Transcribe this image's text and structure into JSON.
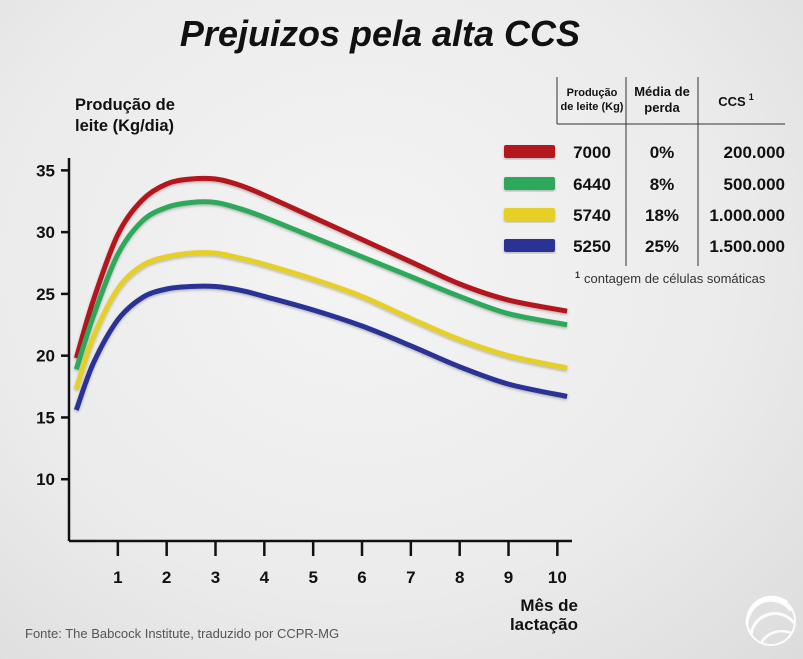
{
  "chart_data": {
    "type": "line",
    "title": "Prejuizos pela alta CCS",
    "ylabel_lines": [
      "Produção de",
      "leite (Kg/dia)"
    ],
    "xlabel_lines": [
      "Mês de",
      "lactação"
    ],
    "y_ticks": [
      10,
      15,
      20,
      25,
      30,
      35
    ],
    "x_ticks": [
      1,
      2,
      3,
      4,
      5,
      6,
      7,
      8,
      9,
      10
    ],
    "ylim": [
      5,
      36
    ],
    "xlim": [
      0,
      10.3
    ],
    "grid": false,
    "series": [
      {
        "name": "7000",
        "color": "#b3141c",
        "x": [
          0.15,
          0.5,
          1,
          1.5,
          2,
          2.5,
          3,
          3.5,
          4,
          5,
          6,
          7,
          8,
          9,
          10.2
        ],
        "y": [
          19.8,
          24.5,
          29.8,
          32.6,
          33.9,
          34.3,
          34.3,
          33.8,
          33.0,
          31.2,
          29.4,
          27.6,
          25.8,
          24.5,
          23.6
        ]
      },
      {
        "name": "6440",
        "color": "#2ea85a",
        "x": [
          0.15,
          0.5,
          1,
          1.5,
          2,
          2.5,
          3,
          3.5,
          4,
          5,
          6,
          7,
          8,
          9,
          10.2
        ],
        "y": [
          18.9,
          23.2,
          28.2,
          30.9,
          32.0,
          32.4,
          32.4,
          31.9,
          31.2,
          29.6,
          28.0,
          26.4,
          24.8,
          23.4,
          22.5
        ]
      },
      {
        "name": "5740",
        "color": "#e6cf28",
        "x": [
          0.15,
          0.5,
          1,
          1.5,
          2,
          2.5,
          3,
          3.5,
          4,
          5,
          6,
          7,
          8,
          9,
          10.2
        ],
        "y": [
          17.3,
          21.5,
          25.4,
          27.3,
          28.0,
          28.3,
          28.3,
          27.9,
          27.4,
          26.2,
          24.8,
          23.0,
          21.3,
          20.0,
          19.0
        ]
      },
      {
        "name": "5250",
        "color": "#2b3396",
        "x": [
          0.15,
          0.5,
          1,
          1.5,
          2,
          2.5,
          3,
          3.5,
          4,
          5,
          6,
          7,
          8,
          9,
          10.2
        ],
        "y": [
          15.6,
          19.4,
          22.9,
          24.7,
          25.4,
          25.6,
          25.6,
          25.3,
          24.8,
          23.7,
          22.4,
          20.8,
          19.1,
          17.7,
          16.7
        ]
      }
    ],
    "legend_table": {
      "headers": [
        [
          "Produção",
          "de leite (Kg)"
        ],
        [
          "Média de",
          "perda"
        ],
        [
          "CCS",
          "1"
        ]
      ],
      "rows": [
        {
          "producao": "7000",
          "perda": "0%",
          "ccs": "200.000",
          "color": "#b3141c"
        },
        {
          "producao": "6440",
          "perda": "8%",
          "ccs": "500.000",
          "color": "#2ea85a"
        },
        {
          "producao": "5740",
          "perda": "18%",
          "ccs": "1.000.000",
          "color": "#e6cf28"
        },
        {
          "producao": "5250",
          "perda": "25%",
          "ccs": "1.500.000",
          "color": "#2b3396"
        }
      ],
      "footnote_mark": "1",
      "footnote": "contagem de células somáticas"
    }
  },
  "source": "Fonte: The Babcock Institute, traduzido por CCPR-MG",
  "logo": {
    "icon": "globe-logo-icon"
  }
}
